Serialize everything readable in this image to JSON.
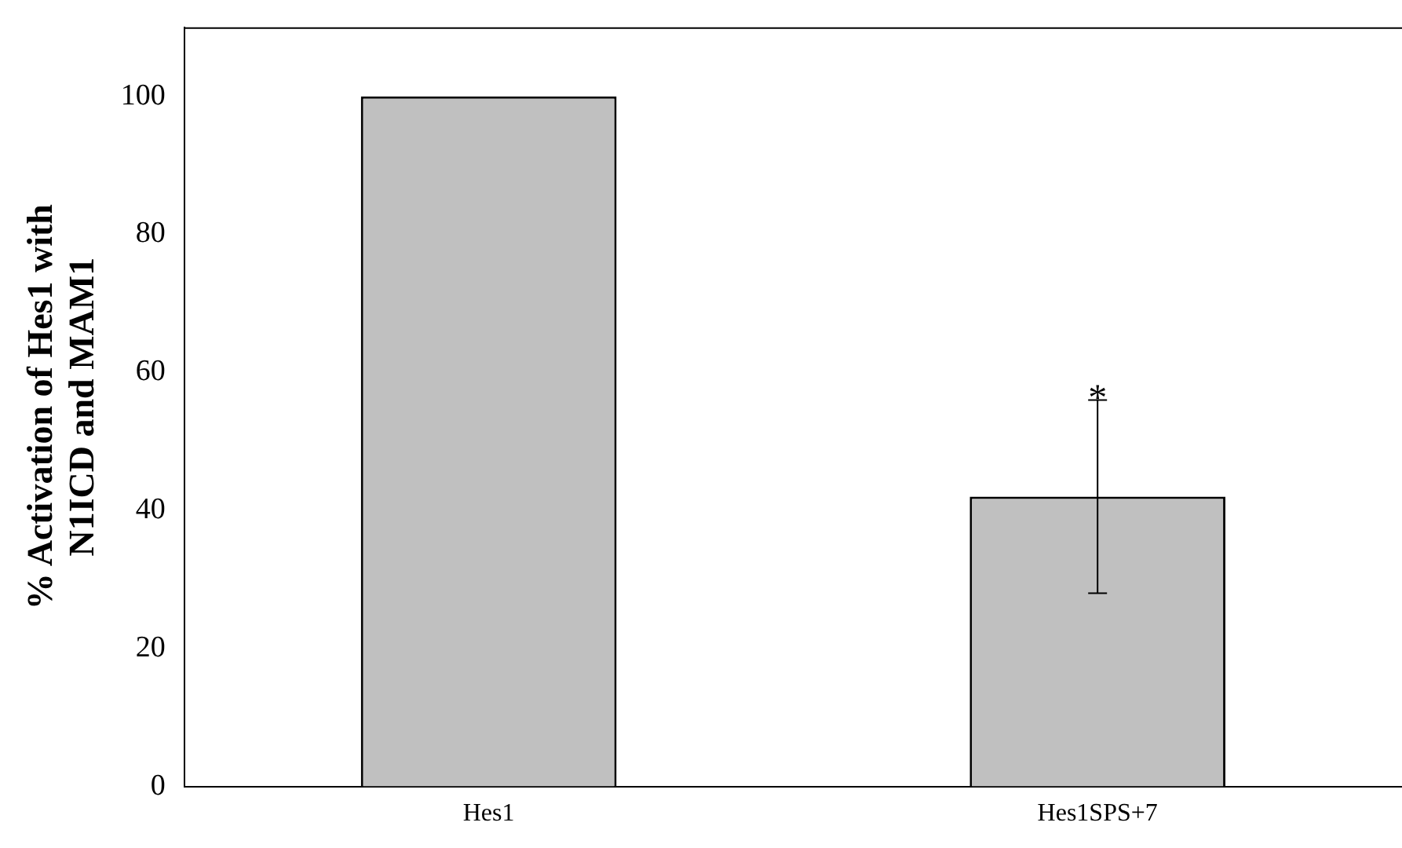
{
  "chart_data": {
    "type": "bar",
    "ylabel": "% Activation of Hes1 with N1ICD and MAM1",
    "categories": [
      "Hes1",
      "Hes1SPS+7"
    ],
    "values": [
      100,
      42
    ],
    "errors": [
      null,
      14
    ],
    "color": "#c0c0c0",
    "ylim": [
      0,
      110
    ],
    "yticks": [
      0,
      20,
      40,
      60,
      80,
      100
    ],
    "grid": false,
    "legend": false,
    "annotations": [
      {
        "text": "*",
        "x": "Hes1SPS+7",
        "y": 56
      }
    ]
  }
}
